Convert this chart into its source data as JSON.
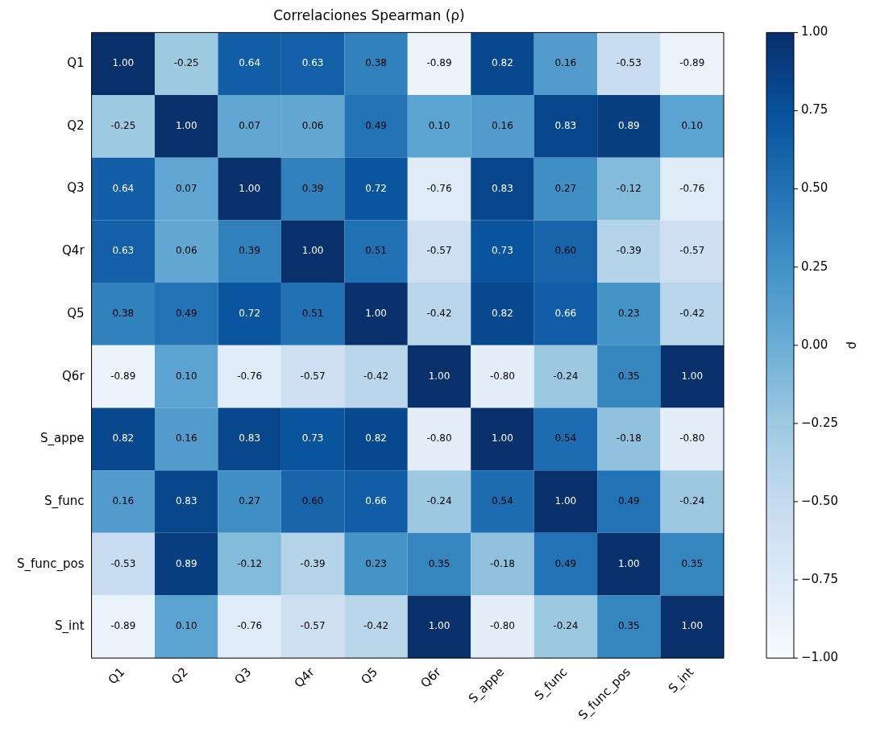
{
  "chart_data": {
    "type": "heatmap",
    "title": "Correlaciones Spearman (ρ)",
    "clabel": "ρ",
    "categories": [
      "Q1",
      "Q2",
      "Q3",
      "Q4r",
      "Q5",
      "Q6r",
      "S_appe",
      "S_func",
      "S_func_pos",
      "S_int"
    ],
    "y_categories": [
      "Q1",
      "Q2",
      "Q3",
      "Q4r",
      "Q5",
      "Q6r",
      "S_appe",
      "S_func",
      "S_func_pos",
      "S_int"
    ],
    "cells": [
      [
        1.0,
        -0.25,
        0.64,
        0.63,
        0.38,
        -0.89,
        0.82,
        0.16,
        -0.53,
        -0.89
      ],
      [
        -0.25,
        1.0,
        0.07,
        0.06,
        0.49,
        0.1,
        0.16,
        0.83,
        0.89,
        0.1
      ],
      [
        0.64,
        0.07,
        1.0,
        0.39,
        0.72,
        -0.76,
        0.83,
        0.27,
        -0.12,
        -0.76
      ],
      [
        0.63,
        0.06,
        0.39,
        1.0,
        0.51,
        -0.57,
        0.73,
        0.6,
        -0.39,
        -0.57
      ],
      [
        0.38,
        0.49,
        0.72,
        0.51,
        1.0,
        -0.42,
        0.82,
        0.66,
        0.23,
        -0.42
      ],
      [
        -0.89,
        0.1,
        -0.76,
        -0.57,
        -0.42,
        1.0,
        -0.8,
        -0.24,
        0.35,
        1.0
      ],
      [
        0.82,
        0.16,
        0.83,
        0.73,
        0.82,
        -0.8,
        1.0,
        0.54,
        -0.18,
        -0.8
      ],
      [
        0.16,
        0.83,
        0.27,
        0.6,
        0.66,
        -0.24,
        0.54,
        1.0,
        0.49,
        -0.24
      ],
      [
        -0.53,
        0.89,
        -0.12,
        -0.39,
        0.23,
        0.35,
        -0.18,
        0.49,
        1.0,
        0.35
      ],
      [
        -0.89,
        0.1,
        -0.76,
        -0.57,
        -0.42,
        1.0,
        -0.8,
        -0.24,
        0.35,
        1.0
      ]
    ],
    "cell_labels": [
      [
        "1.00",
        "-0.25",
        "0.64",
        "0.63",
        "0.38",
        "-0.89",
        "0.82",
        "0.16",
        "-0.53",
        "-0.89"
      ],
      [
        "-0.25",
        "1.00",
        "0.07",
        "0.06",
        "0.49",
        "0.10",
        "0.16",
        "0.83",
        "0.89",
        "0.10"
      ],
      [
        "0.64",
        "0.07",
        "1.00",
        "0.39",
        "0.72",
        "-0.76",
        "0.83",
        "0.27",
        "-0.12",
        "-0.76"
      ],
      [
        "0.63",
        "0.06",
        "0.39",
        "1.00",
        "0.51",
        "-0.57",
        "0.73",
        "0.60",
        "-0.39",
        "-0.57"
      ],
      [
        "0.38",
        "0.49",
        "0.72",
        "0.51",
        "1.00",
        "-0.42",
        "0.82",
        "0.66",
        "0.23",
        "-0.42"
      ],
      [
        "-0.89",
        "0.10",
        "-0.76",
        "-0.57",
        "-0.42",
        "1.00",
        "-0.80",
        "-0.24",
        "0.35",
        "1.00"
      ],
      [
        "0.82",
        "0.16",
        "0.83",
        "0.73",
        "0.82",
        "-0.80",
        "1.00",
        "0.54",
        "-0.18",
        "-0.80"
      ],
      [
        "0.16",
        "0.83",
        "0.27",
        "0.60",
        "0.66",
        "-0.24",
        "0.54",
        "1.00",
        "0.49",
        "-0.24"
      ],
      [
        "-0.53",
        "0.89",
        "-0.12",
        "-0.39",
        "0.23",
        "0.35",
        "-0.18",
        "0.49",
        "1.00",
        "0.35"
      ],
      [
        "-0.89",
        "0.10",
        "-0.76",
        "-0.57",
        "-0.42",
        "1.00",
        "-0.80",
        "-0.24",
        "0.35",
        "1.00"
      ]
    ],
    "clim": [
      -1.0,
      1.0
    ],
    "cticks": [
      {
        "value": -1,
        "label": "−1.00"
      },
      {
        "value": -0.75,
        "label": "−0.75"
      },
      {
        "value": -0.5,
        "label": "−0.50"
      },
      {
        "value": -0.25,
        "label": "−0.25"
      },
      {
        "value": 0,
        "label": "0.00"
      },
      {
        "value": 0.25,
        "label": "0.25"
      },
      {
        "value": 0.5,
        "label": "0.50"
      },
      {
        "value": 0.75,
        "label": "0.75"
      },
      {
        "value": 1,
        "label": "1.00"
      }
    ]
  }
}
